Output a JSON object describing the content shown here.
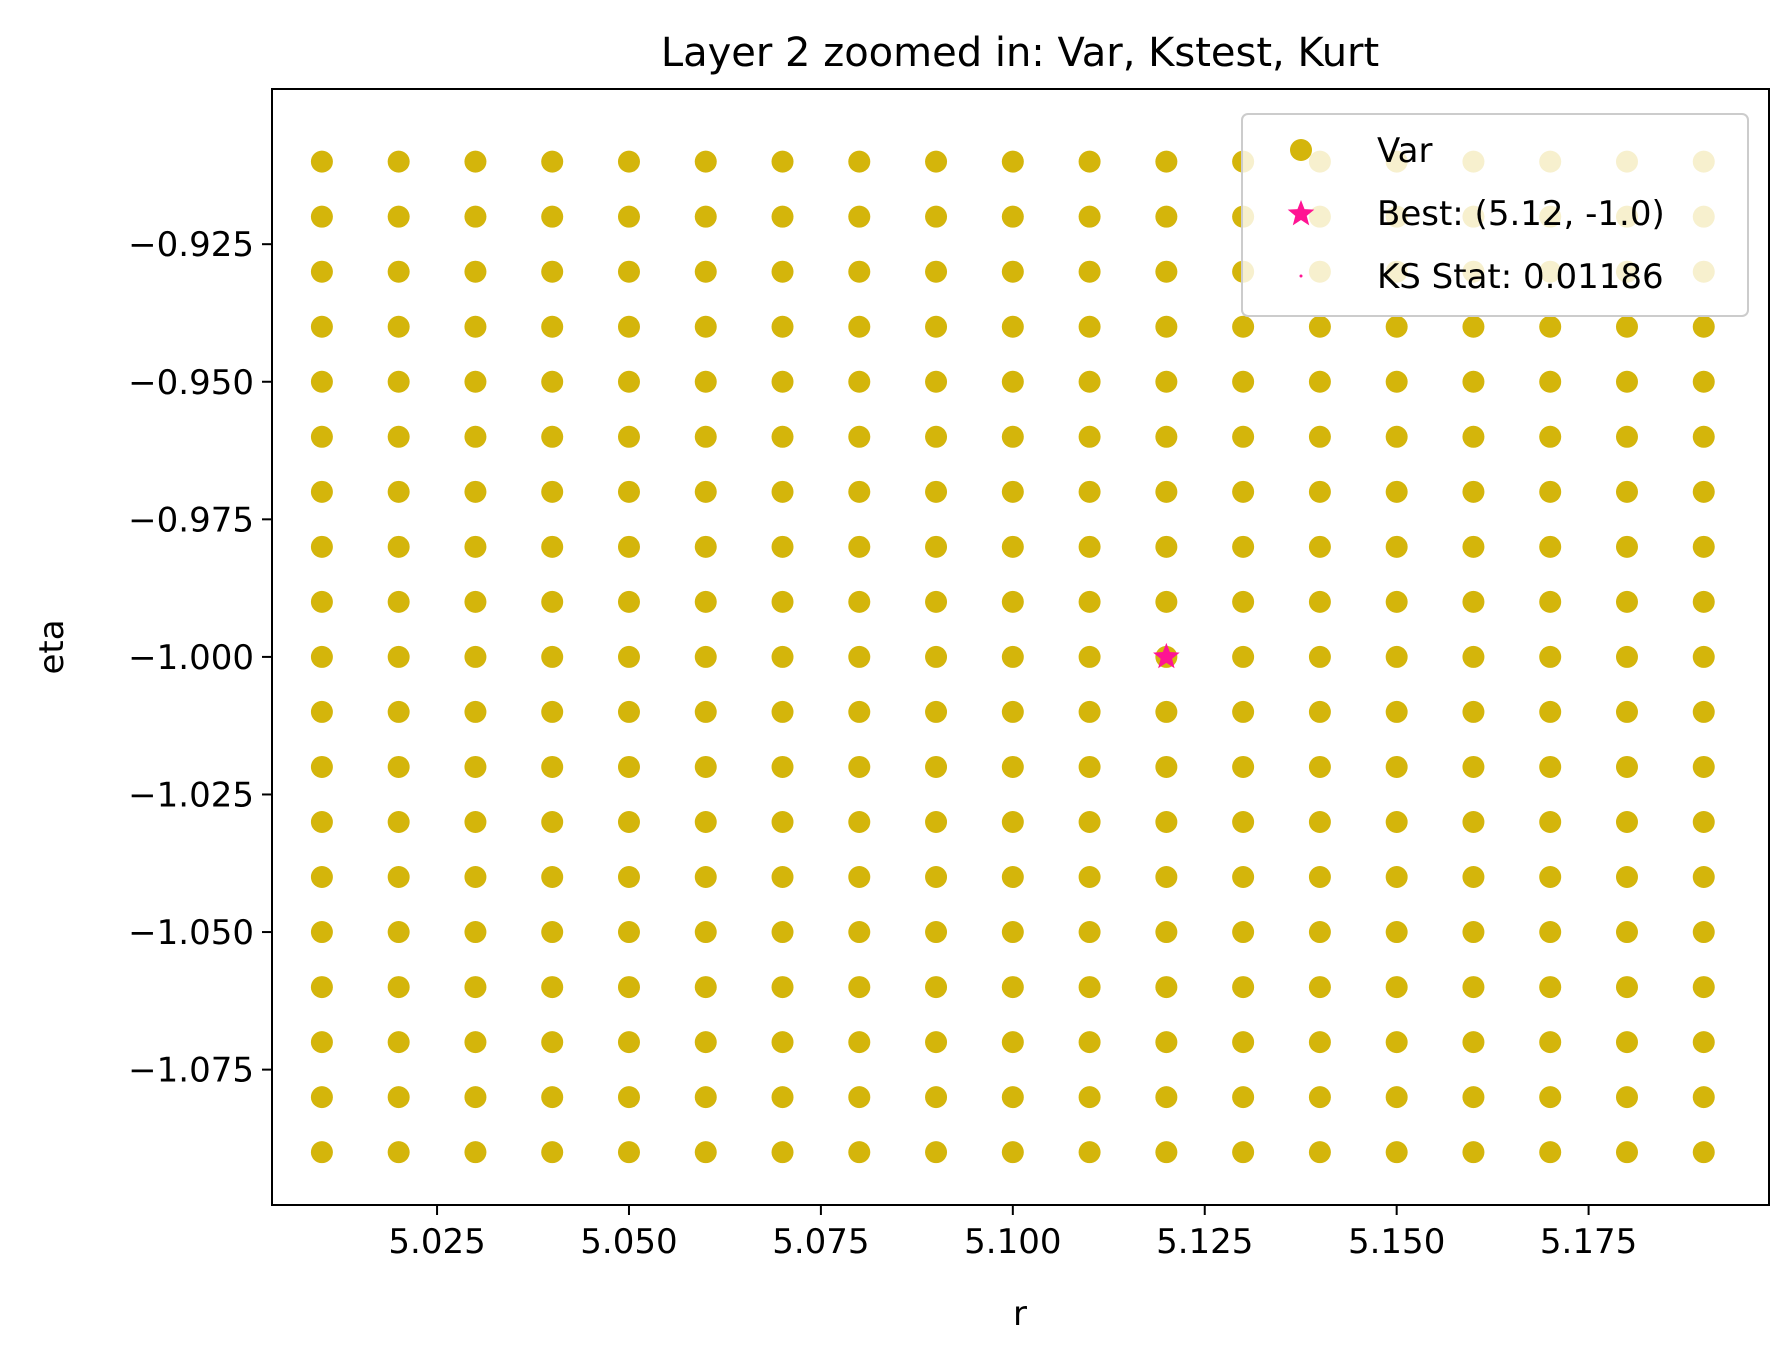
{
  "chart_data": {
    "type": "scatter",
    "title": "Layer 2 zoomed in: Var, Kstest, Kurt",
    "xlabel": "r",
    "ylabel": "eta",
    "xlim": [
      5.0035,
      5.1985
    ],
    "ylim": [
      -1.0996,
      -0.8968
    ],
    "x_ticks": [
      {
        "value": 5.025,
        "label": "5.025"
      },
      {
        "value": 5.05,
        "label": "5.050"
      },
      {
        "value": 5.075,
        "label": "5.075"
      },
      {
        "value": 5.1,
        "label": "5.100"
      },
      {
        "value": 5.125,
        "label": "5.125"
      },
      {
        "value": 5.15,
        "label": "5.150"
      },
      {
        "value": 5.175,
        "label": "5.175"
      }
    ],
    "y_ticks": [
      {
        "value": -0.925,
        "label": "−0.925"
      },
      {
        "value": -0.95,
        "label": "−0.950"
      },
      {
        "value": -0.975,
        "label": "−0.975"
      },
      {
        "value": -1.0,
        "label": "−1.000"
      },
      {
        "value": -1.025,
        "label": "−1.025"
      },
      {
        "value": -1.05,
        "label": "−1.050"
      },
      {
        "value": -1.075,
        "label": "−1.075"
      }
    ],
    "grid": false,
    "series": [
      {
        "name": "Var",
        "kind": "grid-points",
        "color": "#d4b50b",
        "x": [
          5.01,
          5.02,
          5.03,
          5.04,
          5.05,
          5.06,
          5.07,
          5.08,
          5.09,
          5.1,
          5.11,
          5.12,
          5.13,
          5.14,
          5.15,
          5.16,
          5.17,
          5.18,
          5.19
        ],
        "y": [
          -0.91,
          -0.92,
          -0.93,
          -0.94,
          -0.95,
          -0.96,
          -0.97,
          -0.98,
          -0.99,
          -1.0,
          -1.01,
          -1.02,
          -1.03,
          -1.04,
          -1.05,
          -1.06,
          -1.07,
          -1.08,
          -1.09
        ]
      },
      {
        "name": "Best: (5.12, -1.0)",
        "kind": "star",
        "color": "#ff1493",
        "points": [
          {
            "x": 5.12,
            "y": -1.0
          }
        ]
      },
      {
        "name": "KS Stat: 0.01186",
        "kind": "dot",
        "color": "#ff1493",
        "points": []
      }
    ],
    "legend": {
      "position": "top-right",
      "entries": [
        "Var",
        "Best: (5.12, -1.0)",
        "KS Stat: 0.01186"
      ]
    }
  }
}
